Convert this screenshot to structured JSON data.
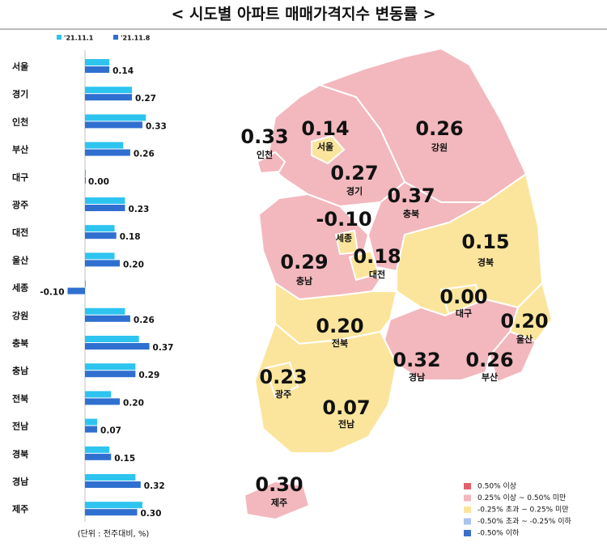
{
  "title": "< 시도별 아파트 매매가격지수 변동률 >",
  "chart_data": {
    "type": "bar",
    "orientation": "horizontal",
    "categories": [
      "서울",
      "경기",
      "인천",
      "부산",
      "대구",
      "광주",
      "대전",
      "울산",
      "세종",
      "강원",
      "충북",
      "충남",
      "전북",
      "전남",
      "경북",
      "경남",
      "제주"
    ],
    "series": [
      {
        "name": "'21.11.1",
        "color": "#2ec4f0",
        "values": [
          0.14,
          0.27,
          0.35,
          0.22,
          0.0,
          0.23,
          0.17,
          0.17,
          0.0,
          0.23,
          0.31,
          0.29,
          0.15,
          0.07,
          0.14,
          0.29,
          0.33
        ]
      },
      {
        "name": "'21.11.8",
        "color": "#2f6fd0",
        "values": [
          0.14,
          0.27,
          0.33,
          0.26,
          0.0,
          0.23,
          0.18,
          0.2,
          -0.1,
          0.26,
          0.37,
          0.29,
          0.2,
          0.07,
          0.15,
          0.32,
          0.3
        ],
        "value_labels": [
          "0.14",
          "0.27",
          "0.33",
          "0.26",
          "0.00",
          "0.23",
          "0.18",
          "0.20",
          "-0.10",
          "0.26",
          "0.37",
          "0.29",
          "0.20",
          "0.07",
          "0.15",
          "0.32",
          "0.30"
        ]
      }
    ],
    "unit_note": "(단위 : 전주대비, %)"
  },
  "map": {
    "regions": [
      {
        "name": "강원",
        "value": 0.26,
        "value_label": "0.26",
        "color": "#f2b8bd"
      },
      {
        "name": "경기",
        "value": 0.27,
        "value_label": "0.27",
        "color": "#f2b8bd"
      },
      {
        "name": "서울",
        "value": 0.14,
        "value_label": "0.14",
        "color": "#fbe59c"
      },
      {
        "name": "인천",
        "value": 0.33,
        "value_label": "0.33",
        "color": "#f2b8bd"
      },
      {
        "name": "충북",
        "value": 0.37,
        "value_label": "0.37",
        "color": "#f2b8bd"
      },
      {
        "name": "충남",
        "value": 0.29,
        "value_label": "0.29",
        "color": "#f2b8bd"
      },
      {
        "name": "세종",
        "value": -0.1,
        "value_label": "-0.10",
        "color": "#fbe59c"
      },
      {
        "name": "대전",
        "value": 0.18,
        "value_label": "0.18",
        "color": "#fbe59c"
      },
      {
        "name": "경북",
        "value": 0.15,
        "value_label": "0.15",
        "color": "#fbe59c"
      },
      {
        "name": "대구",
        "value": 0.0,
        "value_label": "0.00",
        "color": "#fbe59c"
      },
      {
        "name": "울산",
        "value": 0.2,
        "value_label": "0.20",
        "color": "#fbe59c"
      },
      {
        "name": "전북",
        "value": 0.2,
        "value_label": "0.20",
        "color": "#fbe59c"
      },
      {
        "name": "경남",
        "value": 0.32,
        "value_label": "0.32",
        "color": "#f2b8bd"
      },
      {
        "name": "부산",
        "value": 0.26,
        "value_label": "0.26",
        "color": "#f2b8bd"
      },
      {
        "name": "전남",
        "value": 0.07,
        "value_label": "0.07",
        "color": "#fbe59c"
      },
      {
        "name": "광주",
        "value": 0.23,
        "value_label": "0.23",
        "color": "#fbe59c"
      },
      {
        "name": "제주",
        "value": 0.3,
        "value_label": "0.30",
        "color": "#f2b8bd"
      }
    ],
    "legend": [
      {
        "label": "0.50% 이상",
        "color": "#e45f6c"
      },
      {
        "label": "0.25% 이상 ~ 0.50% 미만",
        "color": "#f2b8bd"
      },
      {
        "label": "-0.25% 초과 ~ 0.25% 미만",
        "color": "#fbe59c"
      },
      {
        "label": "-0.50% 초과 ~ -0.25% 이하",
        "color": "#a9c3ec"
      },
      {
        "label": "-0.50% 이하",
        "color": "#3b6fc9"
      }
    ]
  }
}
